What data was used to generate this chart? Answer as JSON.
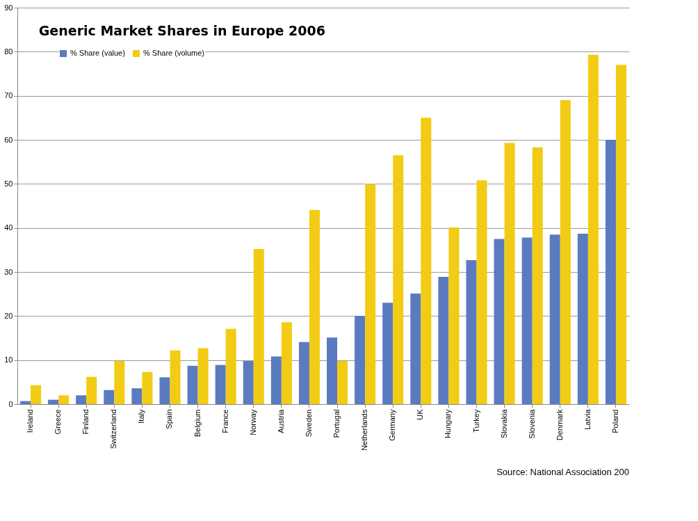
{
  "chart_data": {
    "type": "bar",
    "title": "Generic Market Shares in Europe 2006",
    "categories": [
      "Ireland",
      "Greece",
      "Finland",
      "Switzerland",
      "Italy",
      "Spain",
      "Belgium",
      "France",
      "Norway",
      "Austria",
      "Sweden",
      "Portugal",
      "Netherlands",
      "Germany",
      "UK",
      "Hungary",
      "Turkey",
      "Slovakia",
      "Slovenia",
      "Denmark",
      "Latvia",
      "Poland"
    ],
    "series": [
      {
        "name": "% Share (value)",
        "color": "#5b7bc0",
        "values": [
          0.7,
          1.0,
          2.0,
          3.2,
          3.6,
          6.1,
          8.7,
          8.9,
          9.8,
          10.8,
          14.1,
          15.1,
          20.0,
          23.0,
          25.1,
          28.9,
          32.7,
          37.5,
          37.8,
          38.5,
          38.7,
          60.0
        ]
      },
      {
        "name": "% Share (volume)",
        "color": "#f2cc14",
        "values": [
          4.3,
          2.0,
          6.2,
          9.8,
          7.3,
          12.2,
          12.7,
          17.1,
          35.2,
          18.6,
          44.1,
          9.8,
          50.0,
          56.5,
          65.0,
          40.1,
          50.8,
          59.3,
          58.3,
          69.0,
          79.3,
          77.0
        ]
      }
    ],
    "ylim": [
      0,
      90
    ],
    "yticks": [
      0,
      10,
      20,
      30,
      40,
      50,
      60,
      70,
      80,
      90
    ],
    "grid": "y",
    "legend": "top left",
    "annotations": [
      "Source: National Association 200"
    ]
  }
}
